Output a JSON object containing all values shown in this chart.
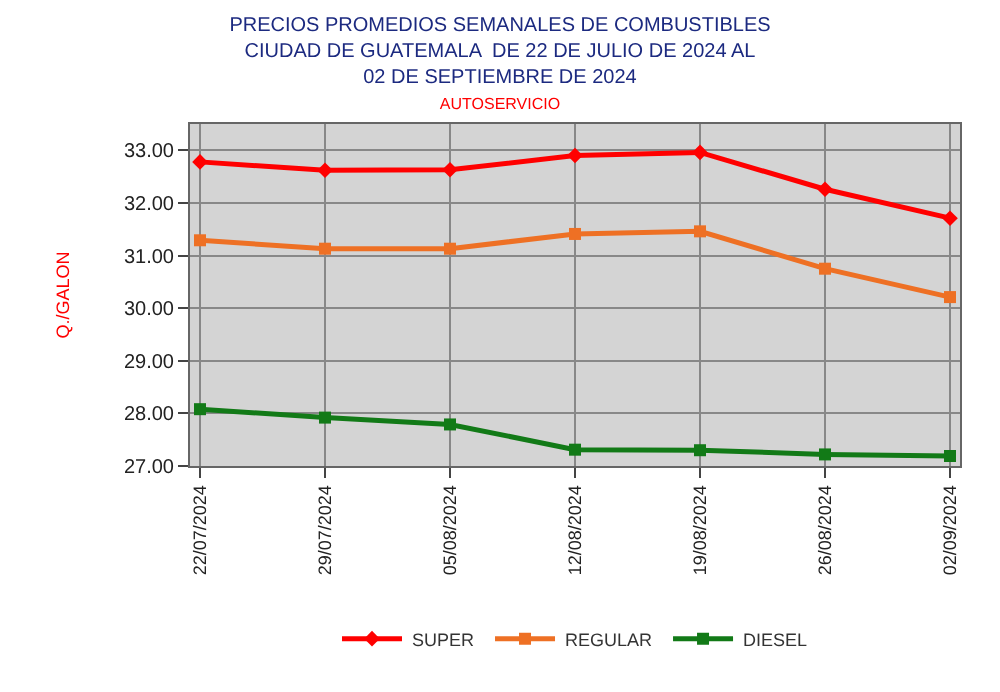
{
  "chart_data": {
    "type": "line",
    "title": "PRECIOS PROMEDIOS SEMANALES DE COMBUSTIBLES\nCIUDAD DE GUATEMALA  DE 22 DE JULIO DE 2024 AL\n02 DE SEPTIEMBRE DE 2024",
    "subtitle": "AUTOSERVICIO",
    "ylabel": "Q./GALON",
    "categories": [
      "22/07/2024",
      "29/07/2024",
      "05/08/2024",
      "12/08/2024",
      "19/08/2024",
      "26/08/2024",
      "02/09/2024"
    ],
    "series": [
      {
        "name": "SUPER",
        "color": "#ff0000",
        "marker": "diamond",
        "values": [
          32.78,
          32.62,
          32.63,
          32.9,
          32.96,
          32.26,
          31.71
        ]
      },
      {
        "name": "REGULAR",
        "color": "#ee7024",
        "marker": "square",
        "values": [
          31.29,
          31.13,
          31.13,
          31.41,
          31.46,
          30.75,
          30.21
        ]
      },
      {
        "name": "DIESEL",
        "color": "#127a17",
        "marker": "square",
        "values": [
          28.08,
          27.92,
          27.79,
          27.31,
          27.3,
          27.22,
          27.19
        ]
      }
    ],
    "ylim": [
      27.0,
      33.5
    ],
    "yticks": [
      {
        "value": 27,
        "label": "27.00"
      },
      {
        "value": 28,
        "label": "28.00"
      },
      {
        "value": 29,
        "label": "29.00"
      },
      {
        "value": 30,
        "label": "30.00"
      },
      {
        "value": 31,
        "label": "31.00"
      },
      {
        "value": 32,
        "label": "32.00"
      },
      {
        "value": 33,
        "label": "33.00"
      }
    ],
    "grid": true,
    "legend": "bottom",
    "line_style": "solid"
  }
}
